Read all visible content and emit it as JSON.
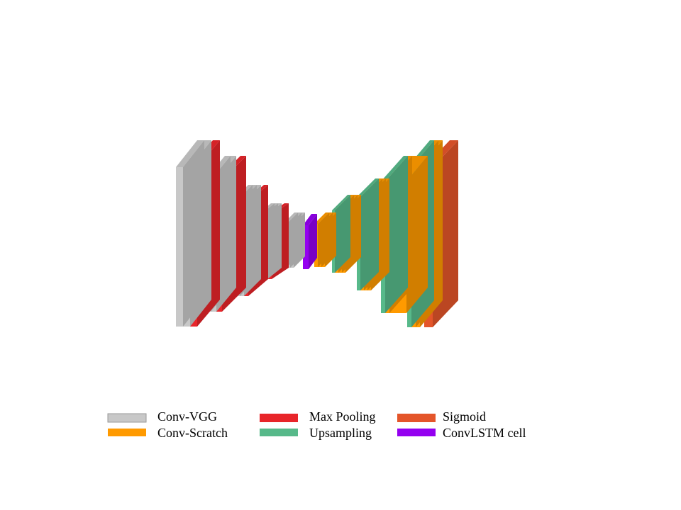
{
  "colors": {
    "conv_vgg": "#c8c8c8",
    "conv_scratch": "#ff9a00",
    "max_pooling": "#e8252a",
    "upsampling": "#57b98a",
    "sigmoid": "#e4552a",
    "convlstm": "#9400f0"
  },
  "network": {
    "layers": [
      "conv_vgg",
      "conv_vgg",
      "max_pooling",
      "conv_vgg",
      "conv_vgg",
      "max_pooling",
      "conv_vgg",
      "conv_vgg",
      "conv_vgg",
      "max_pooling",
      "conv_vgg",
      "conv_vgg",
      "conv_vgg",
      "max_pooling",
      "conv_vgg",
      "conv_vgg",
      "conv_vgg",
      "convlstm",
      "conv_scratch",
      "conv_scratch",
      "conv_scratch",
      "upsampling",
      "conv_scratch",
      "conv_scratch",
      "conv_scratch",
      "upsampling",
      "conv_scratch",
      "conv_scratch",
      "conv_scratch",
      "upsampling",
      "conv_scratch",
      "conv_scratch",
      "upsampling",
      "conv_scratch",
      "conv_scratch",
      "sigmoid"
    ]
  },
  "legend": {
    "conv_vgg": "Conv-VGG",
    "conv_scratch": "Conv-Scratch",
    "max_pooling": "Max Pooling",
    "upsampling": "Upsampling",
    "sigmoid": "Sigmoid",
    "convlstm": "ConvLSTM cell"
  }
}
